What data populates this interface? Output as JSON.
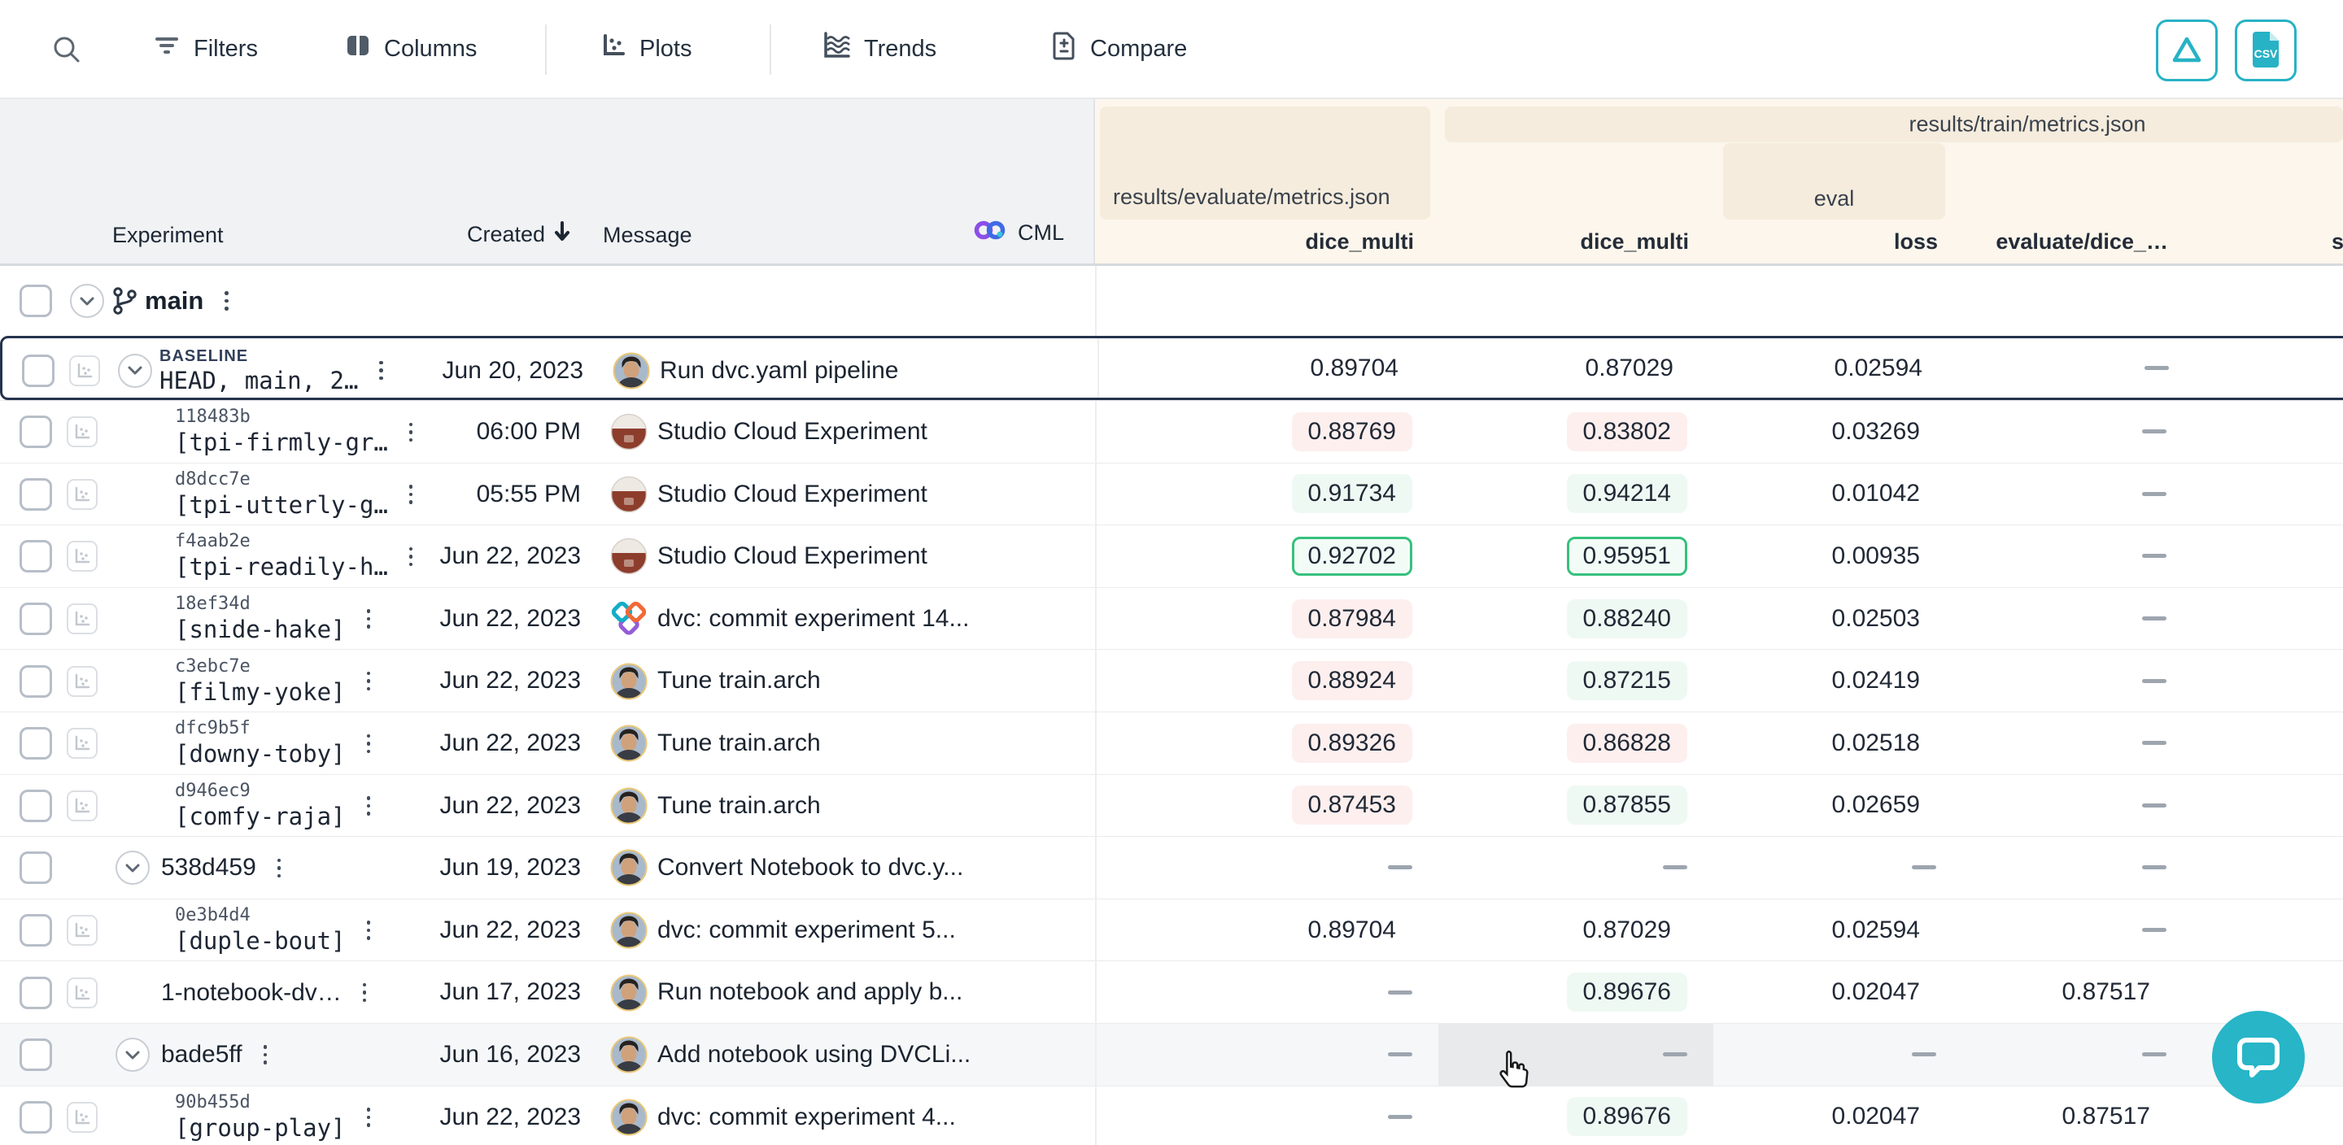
{
  "toolbar": {
    "items": [
      {
        "id": "filters",
        "label": "Filters"
      },
      {
        "id": "columns",
        "label": "Columns"
      },
      {
        "id": "plots",
        "label": "Plots"
      },
      {
        "id": "trends",
        "label": "Trends"
      },
      {
        "id": "compare",
        "label": "Compare"
      }
    ],
    "right_buttons": [
      {
        "id": "delta"
      },
      {
        "id": "csv",
        "label": "CSV"
      }
    ]
  },
  "header": {
    "left_columns": [
      {
        "label": "Experiment"
      },
      {
        "label": "Created",
        "sorted": "desc"
      },
      {
        "label": "Message"
      },
      {
        "label": "CML"
      }
    ],
    "groups": {
      "evaluate": "results/evaluate/metrics.json",
      "train": "results/train/metrics.json",
      "eval": "eval"
    },
    "metric_columns": [
      "dice_multi",
      "dice_multi",
      "loss",
      "evaluate/dice_…",
      "s"
    ]
  },
  "rows": [
    {
      "kind": "branch",
      "name": "main",
      "created": "",
      "message": "",
      "metrics": null
    },
    {
      "kind": "baseline",
      "badge": "BASELINE",
      "name": "HEAD, main, 2…",
      "created": "Jun 20, 2023",
      "avatar": "photo",
      "message": "Run dvc.yaml pipeline",
      "metrics": [
        {
          "v": "0.89704",
          "s": "plain"
        },
        {
          "v": "0.87029",
          "s": "plain"
        },
        {
          "v": "0.02594",
          "s": "plain"
        },
        {
          "s": "dash"
        }
      ]
    },
    {
      "kind": "experiment",
      "hash": "118483b",
      "name": "[tpi-firmly-gr…",
      "created": "06:00 PM",
      "avatar": "bot",
      "message": "Studio Cloud Experiment",
      "metrics": [
        {
          "v": "0.88769",
          "s": "pink"
        },
        {
          "v": "0.83802",
          "s": "pink"
        },
        {
          "v": "0.03269",
          "s": "plain"
        },
        {
          "s": "dash"
        }
      ]
    },
    {
      "kind": "experiment",
      "hash": "d8dcc7e",
      "name": "[tpi-utterly-g…",
      "created": "05:55 PM",
      "avatar": "bot",
      "message": "Studio Cloud Experiment",
      "metrics": [
        {
          "v": "0.91734",
          "s": "green"
        },
        {
          "v": "0.94214",
          "s": "green"
        },
        {
          "v": "0.01042",
          "s": "plain"
        },
        {
          "s": "dash"
        }
      ]
    },
    {
      "kind": "experiment",
      "hash": "f4aab2e",
      "name": "[tpi-readily-h…",
      "created": "Jun 22, 2023",
      "avatar": "bot",
      "message": "Studio Cloud Experiment",
      "metrics": [
        {
          "v": "0.92702",
          "s": "best"
        },
        {
          "v": "0.95951",
          "s": "best"
        },
        {
          "v": "0.00935",
          "s": "plain"
        },
        {
          "s": "dash"
        }
      ]
    },
    {
      "kind": "experiment",
      "hash": "18ef34d",
      "name": "[snide-hake]",
      "created": "Jun 22, 2023",
      "avatar": "dvc",
      "message": "dvc: commit experiment 14...",
      "metrics": [
        {
          "v": "0.87984",
          "s": "pink"
        },
        {
          "v": "0.88240",
          "s": "green"
        },
        {
          "v": "0.02503",
          "s": "plain"
        },
        {
          "s": "dash"
        }
      ]
    },
    {
      "kind": "experiment",
      "hash": "c3ebc7e",
      "name": "[filmy-yoke]",
      "created": "Jun 22, 2023",
      "avatar": "photo",
      "message": "Tune train.arch",
      "metrics": [
        {
          "v": "0.88924",
          "s": "pink"
        },
        {
          "v": "0.87215",
          "s": "green"
        },
        {
          "v": "0.02419",
          "s": "plain"
        },
        {
          "s": "dash"
        }
      ]
    },
    {
      "kind": "experiment",
      "hash": "dfc9b5f",
      "name": "[downy-toby]",
      "created": "Jun 22, 2023",
      "avatar": "photo",
      "message": "Tune train.arch",
      "metrics": [
        {
          "v": "0.89326",
          "s": "pink"
        },
        {
          "v": "0.86828",
          "s": "pink"
        },
        {
          "v": "0.02518",
          "s": "plain"
        },
        {
          "s": "dash"
        }
      ]
    },
    {
      "kind": "experiment",
      "hash": "d946ec9",
      "name": "[comfy-raja]",
      "created": "Jun 22, 2023",
      "avatar": "photo",
      "message": "Tune train.arch",
      "metrics": [
        {
          "v": "0.87453",
          "s": "pink"
        },
        {
          "v": "0.87855",
          "s": "green"
        },
        {
          "v": "0.02659",
          "s": "plain"
        },
        {
          "s": "dash"
        }
      ]
    },
    {
      "kind": "commit",
      "name": "538d459",
      "created": "Jun 19, 2023",
      "avatar": "photo",
      "message": "Convert Notebook to dvc.y...",
      "metrics": [
        {
          "s": "dash"
        },
        {
          "s": "dash"
        },
        {
          "s": "dash"
        },
        {
          "s": "dash"
        }
      ]
    },
    {
      "kind": "experiment",
      "hash": "0e3b4d4",
      "name": "[duple-bout]",
      "created": "Jun 22, 2023",
      "avatar": "photo",
      "message": "dvc: commit experiment 5...",
      "metrics": [
        {
          "v": "0.89704",
          "s": "plain"
        },
        {
          "v": "0.87029",
          "s": "plain"
        },
        {
          "v": "0.02594",
          "s": "plain"
        },
        {
          "s": "dash"
        }
      ]
    },
    {
      "kind": "branch-item",
      "name": "1-notebook-dv…",
      "created": "Jun 17, 2023",
      "avatar": "photo",
      "message": "Run notebook and apply b...",
      "metrics": [
        {
          "s": "dash"
        },
        {
          "v": "0.89676",
          "s": "green"
        },
        {
          "v": "0.02047",
          "s": "plain"
        },
        {
          "v": "0.87517",
          "s": "plain"
        }
      ]
    },
    {
      "kind": "commit",
      "name": "bade5ff",
      "created": "Jun 16, 2023",
      "avatar": "photo",
      "message": "Add notebook using DVCLi...",
      "hover": true,
      "hovercol": 1,
      "metrics": [
        {
          "s": "dash"
        },
        {
          "s": "dash"
        },
        {
          "s": "dash"
        },
        {
          "s": "dash"
        }
      ]
    },
    {
      "kind": "experiment",
      "hash": "90b455d",
      "name": "[group-play]",
      "created": "Jun 22, 2023",
      "avatar": "photo",
      "message": "dvc: commit experiment 4...",
      "metrics": [
        {
          "s": "dash"
        },
        {
          "v": "0.89676",
          "s": "green"
        },
        {
          "v": "0.02047",
          "s": "plain"
        },
        {
          "v": "0.87517",
          "s": "plain"
        }
      ]
    }
  ],
  "chat": {
    "present": true
  }
}
